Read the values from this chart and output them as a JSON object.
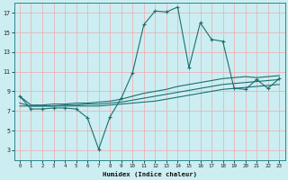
{
  "xlabel": "Humidex (Indice chaleur)",
  "bg_color": "#cceef2",
  "grid_color": "#e8b4b8",
  "line_color": "#1a7070",
  "xlim": [
    -0.5,
    23.5
  ],
  "ylim": [
    2,
    18
  ],
  "yticks": [
    3,
    5,
    7,
    9,
    11,
    13,
    15,
    17
  ],
  "xticks": [
    0,
    1,
    2,
    3,
    4,
    5,
    6,
    7,
    8,
    9,
    10,
    11,
    12,
    13,
    14,
    15,
    16,
    17,
    18,
    19,
    20,
    21,
    22,
    23
  ],
  "line1_x": [
    0,
    1,
    2,
    3,
    4,
    5,
    6,
    7,
    8,
    9,
    10,
    11,
    12,
    13,
    14,
    15,
    16,
    17,
    18,
    19,
    20,
    21,
    22,
    23
  ],
  "line1_y": [
    8.5,
    7.2,
    7.2,
    7.3,
    7.3,
    7.2,
    6.3,
    3.1,
    6.4,
    8.3,
    10.9,
    15.8,
    17.2,
    17.1,
    17.6,
    11.4,
    16.0,
    14.3,
    14.1,
    9.3,
    9.2,
    10.2,
    9.3,
    10.3
  ],
  "line2_x": [
    0,
    1,
    2,
    3,
    4,
    5,
    6,
    7,
    8,
    9,
    10,
    11,
    12,
    13,
    14,
    15,
    16,
    17,
    18,
    19,
    20,
    21,
    22,
    23
  ],
  "line2_y": [
    8.5,
    7.6,
    7.6,
    7.7,
    7.7,
    7.8,
    7.8,
    7.9,
    8.0,
    8.2,
    8.5,
    8.8,
    9.0,
    9.2,
    9.5,
    9.7,
    9.9,
    10.1,
    10.3,
    10.4,
    10.5,
    10.4,
    10.5,
    10.6
  ],
  "line3_x": [
    0,
    1,
    2,
    3,
    4,
    5,
    6,
    7,
    8,
    9,
    10,
    11,
    12,
    13,
    14,
    15,
    16,
    17,
    18,
    19,
    20,
    21,
    22,
    23
  ],
  "line3_y": [
    7.5,
    7.5,
    7.5,
    7.5,
    7.6,
    7.6,
    7.7,
    7.7,
    7.8,
    7.9,
    8.1,
    8.3,
    8.5,
    8.7,
    8.9,
    9.1,
    9.3,
    9.5,
    9.7,
    9.8,
    9.9,
    10.0,
    10.1,
    10.2
  ],
  "line4_x": [
    0,
    1,
    2,
    3,
    4,
    5,
    6,
    7,
    8,
    9,
    10,
    11,
    12,
    13,
    14,
    15,
    16,
    17,
    18,
    19,
    20,
    21,
    22,
    23
  ],
  "line4_y": [
    7.8,
    7.5,
    7.5,
    7.5,
    7.5,
    7.5,
    7.5,
    7.5,
    7.6,
    7.7,
    7.8,
    7.9,
    8.0,
    8.2,
    8.4,
    8.6,
    8.8,
    9.0,
    9.2,
    9.3,
    9.4,
    9.5,
    9.6,
    9.7
  ]
}
